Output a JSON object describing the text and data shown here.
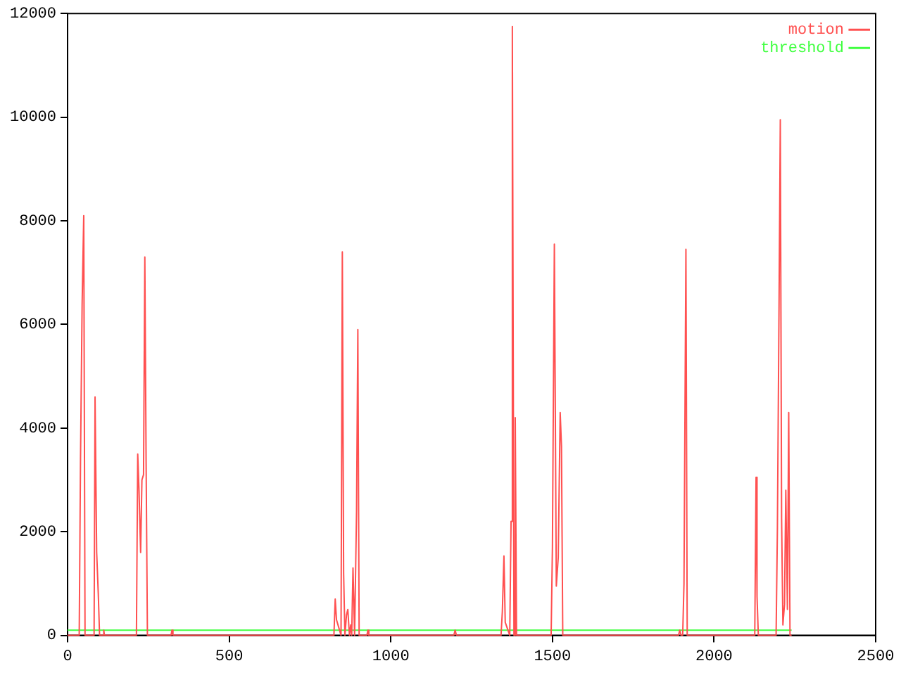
{
  "chart_data": {
    "type": "line",
    "xlim": [
      0,
      2500
    ],
    "xticks": [
      0,
      500,
      1000,
      1500,
      2000,
      2500
    ],
    "ylim": [
      0,
      12000
    ],
    "yticks": [
      0,
      2000,
      4000,
      6000,
      8000,
      10000,
      12000
    ],
    "grid": false,
    "legend": "top right",
    "marker": "none",
    "line_style": "solid",
    "series": [
      {
        "name": "motion",
        "color": "#ff5050",
        "x": [
          0,
          36,
          40,
          45,
          50,
          54,
          82,
          85,
          90,
          95,
          99,
          110,
          112,
          114,
          213,
          217,
          221,
          226,
          230,
          235,
          239,
          243,
          247,
          320,
          323,
          326,
          824,
          828,
          832,
          846,
          850,
          854,
          858,
          863,
          867,
          872,
          876,
          879,
          883,
          888,
          894,
          898,
          902,
          926,
          929,
          932,
          1195,
          1199,
          1203,
          1341,
          1345,
          1350,
          1354,
          1368,
          1372,
          1376,
          1381,
          1385,
          1389,
          1496,
          1500,
          1506,
          1512,
          1518,
          1524,
          1528,
          1532,
          1890,
          1894,
          1898,
          1903,
          1907,
          1913,
          1917,
          2126,
          2130,
          2133,
          2137,
          2192,
          2196,
          2201,
          2205,
          2209,
          2213,
          2218,
          2222,
          2227,
          2231,
          2235,
          2240
        ],
        "values": [
          0,
          0,
          3400,
          6400,
          8100,
          0,
          0,
          4600,
          1600,
          800,
          0,
          0,
          100,
          0,
          0,
          3500,
          2800,
          1600,
          3000,
          3100,
          7300,
          3300,
          0,
          0,
          100,
          0,
          0,
          700,
          300,
          0,
          7400,
          1200,
          0,
          400,
          500,
          0,
          200,
          0,
          1300,
          0,
          2400,
          5900,
          0,
          0,
          100,
          0,
          0,
          100,
          0,
          0,
          450,
          1530,
          250,
          0,
          2200,
          11750,
          0,
          4200,
          0,
          0,
          1700,
          7550,
          950,
          1500,
          4300,
          3650,
          0,
          0,
          100,
          0,
          0,
          1000,
          7450,
          0,
          0,
          3050,
          750,
          0,
          0,
          2050,
          6300,
          9950,
          2250,
          200,
          600,
          2800,
          500,
          4300,
          0,
          0
        ]
      },
      {
        "name": "threshold",
        "color": "#40ff40",
        "x": [
          0,
          2240
        ],
        "values": [
          100,
          100
        ]
      }
    ]
  }
}
